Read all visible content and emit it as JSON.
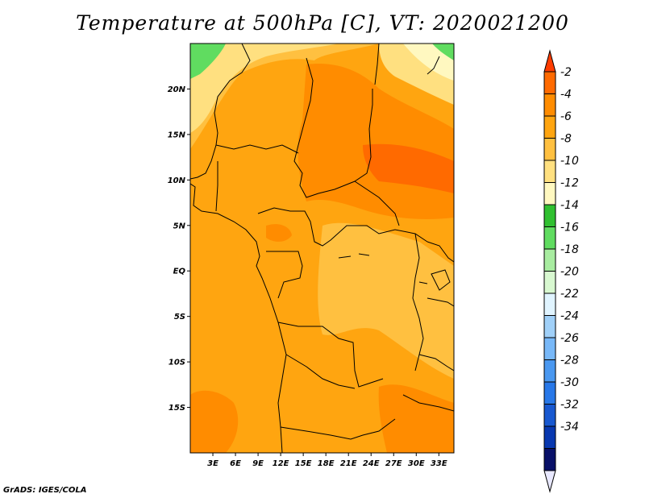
{
  "title": "Temperature at 500hPa [C], VT: 2020021200",
  "credit": "GrADS: IGES/COLA",
  "map": {
    "lon_range": [
      0,
      35
    ],
    "lat_range": [
      -20,
      25
    ],
    "lat_ticks": [
      {
        "value": 20,
        "label": "20N"
      },
      {
        "value": 15,
        "label": "15N"
      },
      {
        "value": 10,
        "label": "10N"
      },
      {
        "value": 5,
        "label": "5N"
      },
      {
        "value": 0,
        "label": "EQ"
      },
      {
        "value": -5,
        "label": "5S"
      },
      {
        "value": -10,
        "label": "10S"
      },
      {
        "value": -15,
        "label": "15S"
      }
    ],
    "lon_ticks": [
      {
        "value": 3,
        "label": "3E"
      },
      {
        "value": 6,
        "label": "6E"
      },
      {
        "value": 9,
        "label": "9E"
      },
      {
        "value": 12,
        "label": "12E"
      },
      {
        "value": 15,
        "label": "15E"
      },
      {
        "value": 18,
        "label": "18E"
      },
      {
        "value": 21,
        "label": "21E"
      },
      {
        "value": 24,
        "label": "24E"
      },
      {
        "value": 27,
        "label": "27E"
      },
      {
        "value": 30,
        "label": "30E"
      },
      {
        "value": 33,
        "label": "33E"
      }
    ]
  },
  "colorbar": {
    "levels": [
      {
        "label": "-2",
        "color": "#ff6a00"
      },
      {
        "label": "-4",
        "color": "#ff8c00"
      },
      {
        "label": "-6",
        "color": "#ffa510"
      },
      {
        "label": "-8",
        "color": "#ffc040"
      },
      {
        "label": "-10",
        "color": "#ffe080"
      },
      {
        "label": "-12",
        "color": "#fff8c0"
      },
      {
        "label": "-14",
        "color": "#30c030"
      },
      {
        "label": "-16",
        "color": "#60dc60"
      },
      {
        "label": "-18",
        "color": "#a8eca0"
      },
      {
        "label": "-20",
        "color": "#d8f8d0"
      },
      {
        "label": "-22",
        "color": "#e0f4ff"
      },
      {
        "label": "-24",
        "color": "#a0d0f8"
      },
      {
        "label": "-26",
        "color": "#78b8f8"
      },
      {
        "label": "-28",
        "color": "#4a98f0"
      },
      {
        "label": "-30",
        "color": "#2878e8"
      },
      {
        "label": "-32",
        "color": "#1858d0"
      },
      {
        "label": "-34",
        "color": "#0838b0"
      }
    ],
    "top_cap_color": "#ff3c00",
    "bottom_color": "#081068",
    "bottom_cap_color": "#e8e8ff"
  }
}
